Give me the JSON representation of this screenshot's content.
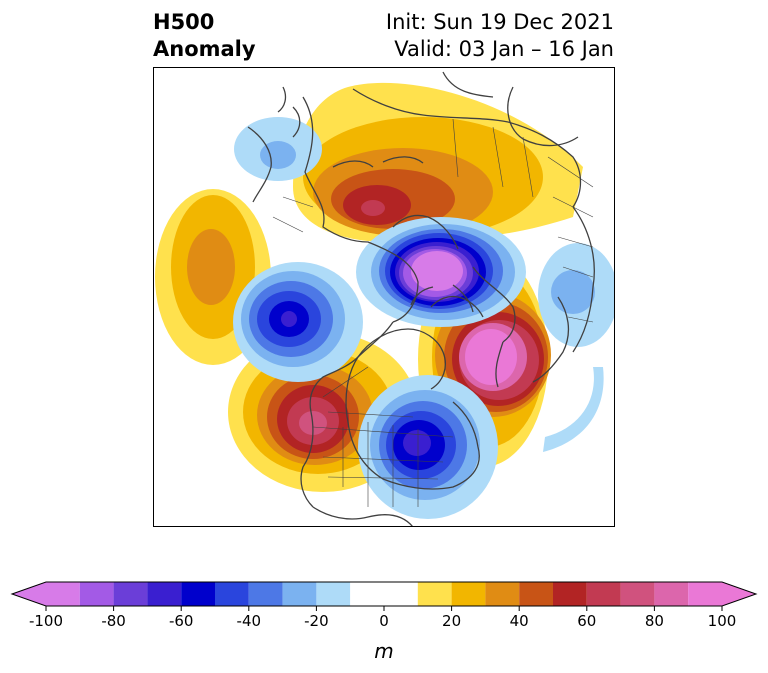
{
  "header": {
    "variable": "H500",
    "field": "Anomaly",
    "init": "Init: Sun 19 Dec 2021",
    "valid": "Valid: 03 Jan – 16 Jan"
  },
  "colorbar": {
    "unit": "m",
    "ticks": [
      "-100",
      "-80",
      "-60",
      "-40",
      "-20",
      "0",
      "20",
      "40",
      "60",
      "80",
      "100"
    ],
    "bins": [
      {
        "lo": -100,
        "hi": -90,
        "color": "#d77be8"
      },
      {
        "lo": -90,
        "hi": -80,
        "color": "#a35ae6"
      },
      {
        "lo": -80,
        "hi": -70,
        "color": "#6b3ed8"
      },
      {
        "lo": -70,
        "hi": -60,
        "color": "#3a1fd0"
      },
      {
        "lo": -60,
        "hi": -50,
        "color": "#0000cc"
      },
      {
        "lo": -50,
        "hi": -40,
        "color": "#2a45dd"
      },
      {
        "lo": -40,
        "hi": -30,
        "color": "#4d78e6"
      },
      {
        "lo": -30,
        "hi": -20,
        "color": "#7bb2f0"
      },
      {
        "lo": -20,
        "hi": -10,
        "color": "#aedbf8"
      },
      {
        "lo": -10,
        "hi": 10,
        "color": "#ffffff"
      },
      {
        "lo": 10,
        "hi": 20,
        "color": "#ffe14d"
      },
      {
        "lo": 20,
        "hi": 30,
        "color": "#f2b600"
      },
      {
        "lo": 30,
        "hi": 40,
        "color": "#e08c14"
      },
      {
        "lo": 40,
        "hi": 50,
        "color": "#c85416"
      },
      {
        "lo": 50,
        "hi": 60,
        "color": "#b22424"
      },
      {
        "lo": 60,
        "hi": 70,
        "color": "#c23a52"
      },
      {
        "lo": 70,
        "hi": 80,
        "color": "#d0527e"
      },
      {
        "lo": 80,
        "hi": 90,
        "color": "#dc66ac"
      },
      {
        "lo": 90,
        "hi": 100,
        "color": "#ea78d6"
      }
    ],
    "under_color": "#d77be8",
    "over_color": "#ea78d6"
  },
  "map": {
    "projection": "north-polar-stereographic",
    "coastline_color": "#404040",
    "anomaly_centers": [
      {
        "region": "north-central-pacific",
        "sign": "positive",
        "peak": 40
      },
      {
        "region": "gulf-of-alaska",
        "sign": "negative",
        "peak": -70
      },
      {
        "region": "western-united-states",
        "sign": "positive",
        "peak": 70
      },
      {
        "region": "eastern-united-states",
        "sign": "negative",
        "peak": -70
      },
      {
        "region": "arctic-canada-greenland",
        "sign": "negative",
        "peak": -100
      },
      {
        "region": "siberia-arctic-ocean",
        "sign": "positive",
        "peak": 60
      },
      {
        "region": "north-atlantic",
        "sign": "positive",
        "peak": 100
      },
      {
        "region": "east-siberia",
        "sign": "negative",
        "peak": -30
      },
      {
        "region": "western-europe",
        "sign": "negative",
        "peak": -30
      },
      {
        "region": "east-asia",
        "sign": "negative",
        "peak": -20
      }
    ]
  }
}
